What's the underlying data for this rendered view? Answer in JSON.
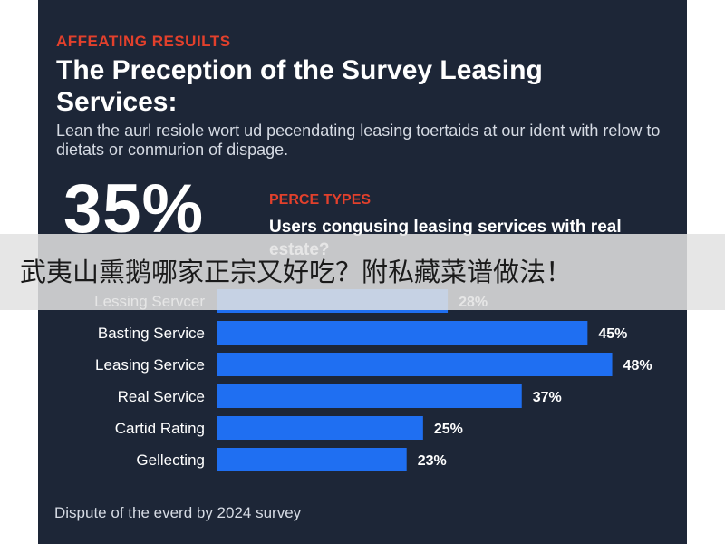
{
  "infographic": {
    "kicker": "AFFEATING RESUILTS",
    "title": "The Preception of the Survey Leasing Services:",
    "subtitle": "Lean the aurl resiole wort ud pecendating leasing toertaids at our ident with relow to dietats or conmurion of dispage.",
    "big_stat": "35%",
    "perce_label": "PERCE TYPES",
    "question": "Users congusing leasing services with real estate?",
    "footer": "Dispute of the everd by 2024 survey"
  },
  "overlay": {
    "text": "武夷山熏鹅哪家正宗又好吃？附私藏菜谱做法！"
  },
  "colors": {
    "background": "#1d2637",
    "accent": "#e2402c",
    "bar": "#1f6ff2"
  },
  "chart_data": {
    "type": "bar",
    "orientation": "horizontal",
    "categories": [
      "Lessing Servcer",
      "Basting Service",
      "Leasing Service",
      "Real Service",
      "Cartid Rating",
      "Gellecting"
    ],
    "values": [
      28,
      45,
      48,
      37,
      25,
      23
    ],
    "value_labels": [
      "28%",
      "45%",
      "48%",
      "37%",
      "25%",
      "23%"
    ],
    "value_scale_max": 54,
    "grid": false,
    "legend": "none"
  }
}
